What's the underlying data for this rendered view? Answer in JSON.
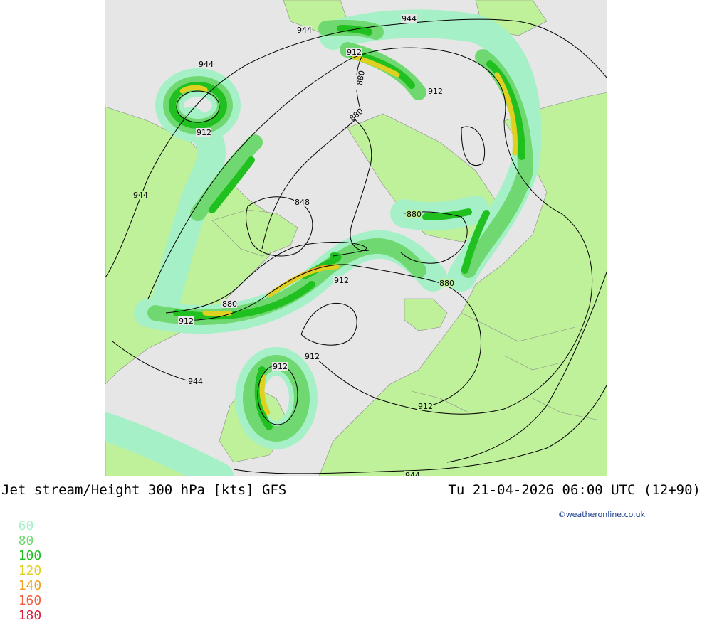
{
  "map": {
    "title": "Jet stream/Height 300 hPa [kts] GFS",
    "datetime": "Tu 21-04-2026 06:00 UTC (12+90)",
    "credit": "©weatheronline.co.uk",
    "legend": [
      {
        "value": "60",
        "color": "#a6f0c8"
      },
      {
        "value": "80",
        "color": "#70d870"
      },
      {
        "value": "100",
        "color": "#20c020"
      },
      {
        "value": "120",
        "color": "#e0d020"
      },
      {
        "value": "140",
        "color": "#f0a020"
      },
      {
        "value": "160",
        "color": "#f06040"
      },
      {
        "value": "180",
        "color": "#e02040"
      }
    ],
    "contour_labels": [
      "944",
      "944",
      "944",
      "944",
      "944",
      "944",
      "912",
      "912",
      "912",
      "912",
      "912",
      "912",
      "912",
      "912",
      "880",
      "880",
      "880",
      "880",
      "880",
      "848"
    ],
    "colors": {
      "land": "#bff09a",
      "sea": "#e6e6e6",
      "jet60": "#a6f0c8",
      "jet80": "#70d870",
      "jet100": "#20c020",
      "jet120": "#e0d020",
      "contour": "#000000",
      "border": "#888888"
    }
  }
}
